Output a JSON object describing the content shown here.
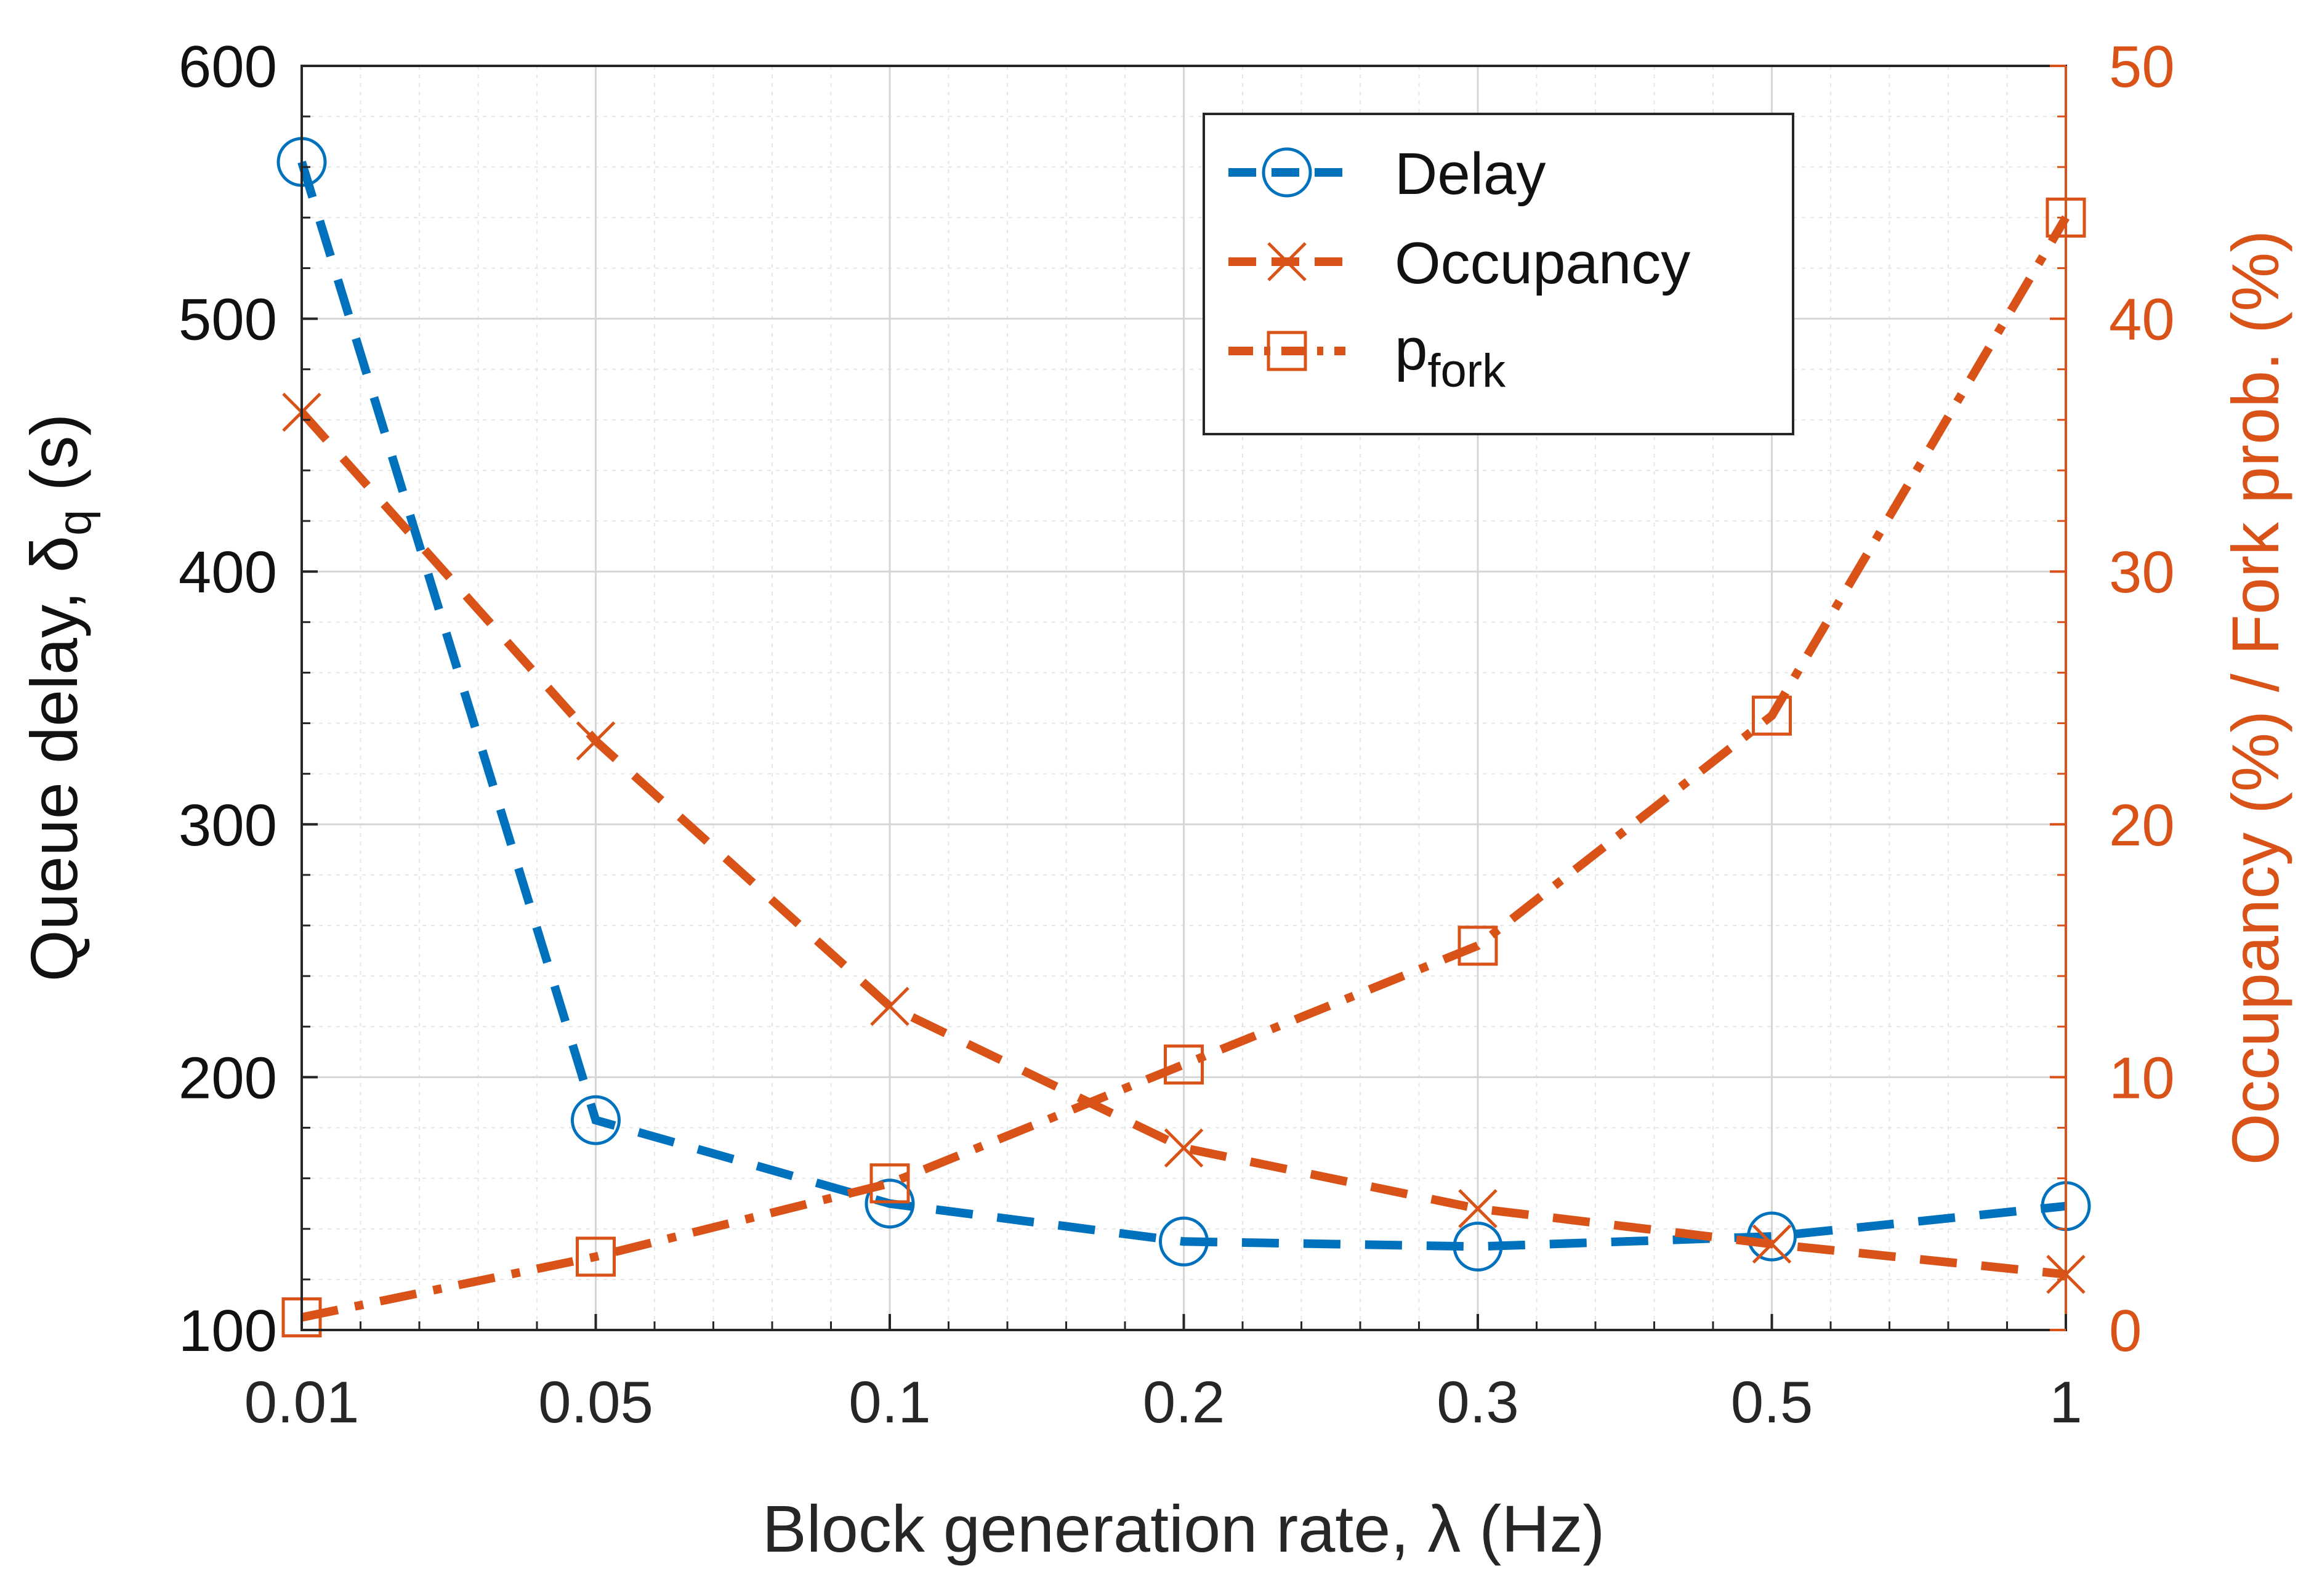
{
  "chart_data": {
    "type": "line",
    "categories": [
      "0.01",
      "0.05",
      "0.1",
      "0.2",
      "0.3",
      "0.5",
      "1"
    ],
    "xlabel": "Block generation rate, λ (Hz)",
    "ylabel_left": "Queue delay, δq (s)",
    "ylabel_left_main": "Queue delay, δ",
    "ylabel_left_sub": "q",
    "ylabel_left_tail": " (s)",
    "ylabel_right": "Occupancy (%) / Fork prob. (%)",
    "ylim_left": [
      100,
      600
    ],
    "ylim_right": [
      0,
      50
    ],
    "yticks_left": [
      "100",
      "200",
      "300",
      "400",
      "500",
      "600"
    ],
    "yticks_right": [
      "0",
      "10",
      "20",
      "30",
      "40",
      "50"
    ],
    "grid": true,
    "legend_position": "top-right",
    "series": [
      {
        "name": "Delay",
        "axis": "left",
        "color": "#0072BD",
        "marker": "circle",
        "linestyle": "dashed",
        "values": [
          562,
          183,
          150,
          135,
          133,
          137,
          149
        ]
      },
      {
        "name": "Occupancy",
        "axis": "right",
        "color": "#D95319",
        "marker": "x",
        "linestyle": "dashed",
        "values": [
          36.3,
          23.3,
          12.8,
          7.2,
          4.8,
          3.4,
          2.2
        ]
      },
      {
        "name": "p",
        "sub": "fork",
        "axis": "right",
        "color": "#D95319",
        "marker": "square",
        "linestyle": "dashdot",
        "values": [
          0.5,
          2.9,
          5.8,
          10.5,
          15.2,
          24.3,
          44.0
        ]
      }
    ]
  }
}
